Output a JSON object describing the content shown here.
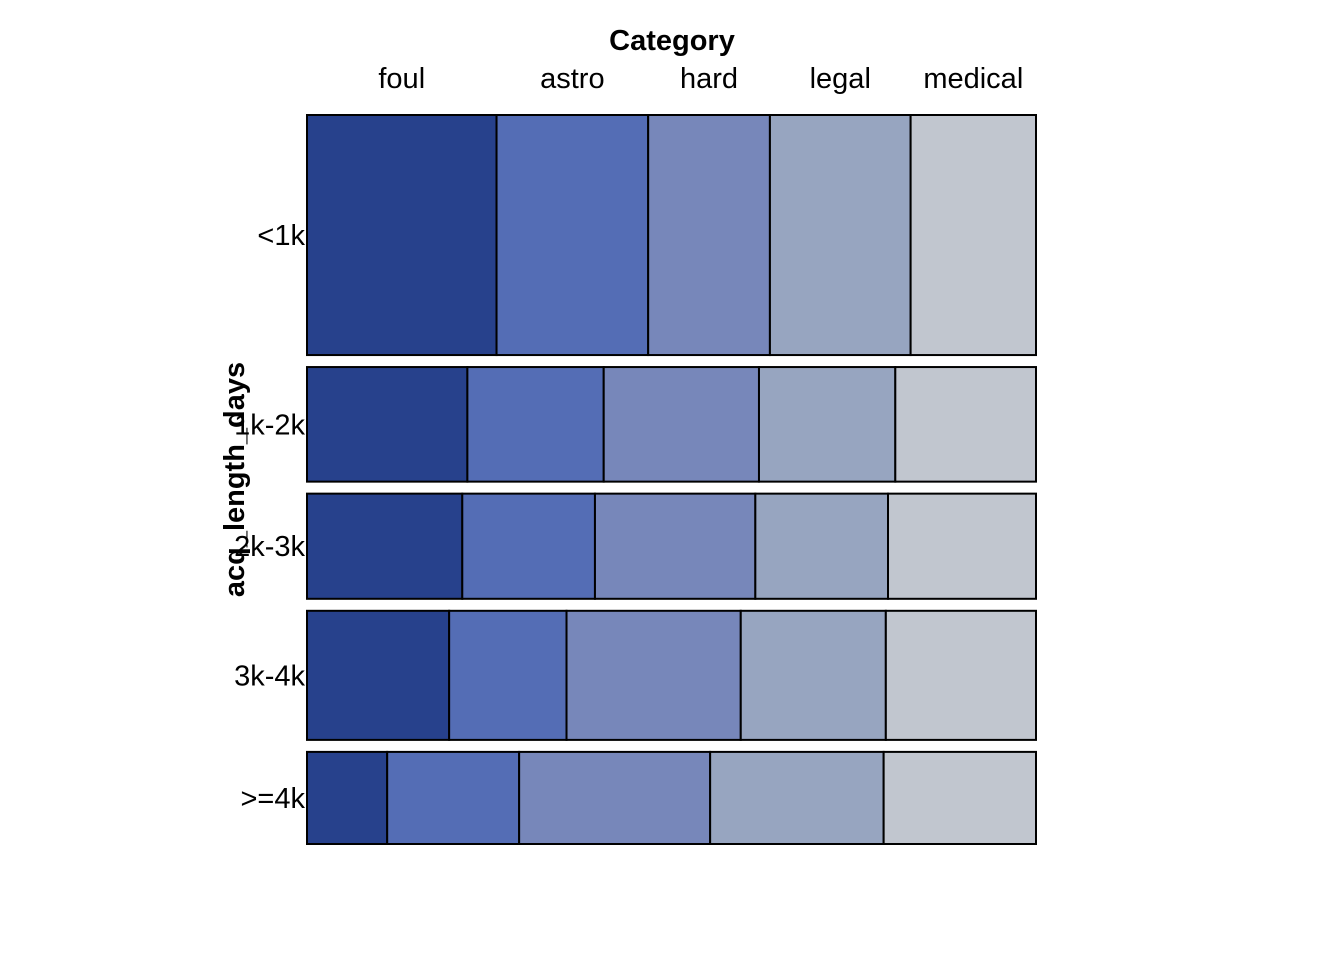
{
  "chart_data": {
    "type": "mosaic",
    "title": "Category",
    "ylabel": "acq_length_days",
    "categories": [
      "foul",
      "astro",
      "hard",
      "legal",
      "medical"
    ],
    "rows": [
      "<1k",
      "1k-2k",
      "2k-3k",
      "3k-4k",
      ">=4k"
    ],
    "row_proportions": [
      0.331,
      0.158,
      0.145,
      0.178,
      0.127
    ],
    "cell_proportions": [
      [
        0.26,
        0.208,
        0.167,
        0.193,
        0.172
      ],
      [
        0.22,
        0.187,
        0.213,
        0.187,
        0.193
      ],
      [
        0.213,
        0.182,
        0.22,
        0.182,
        0.203
      ],
      [
        0.195,
        0.161,
        0.239,
        0.199,
        0.206
      ],
      [
        0.11,
        0.181,
        0.262,
        0.238,
        0.209
      ]
    ],
    "top_label_row": 0,
    "colors": [
      "#27418c",
      "#546db5",
      "#7787ba",
      "#97a5c0",
      "#c1c6cf"
    ],
    "border_color": "#000000"
  }
}
